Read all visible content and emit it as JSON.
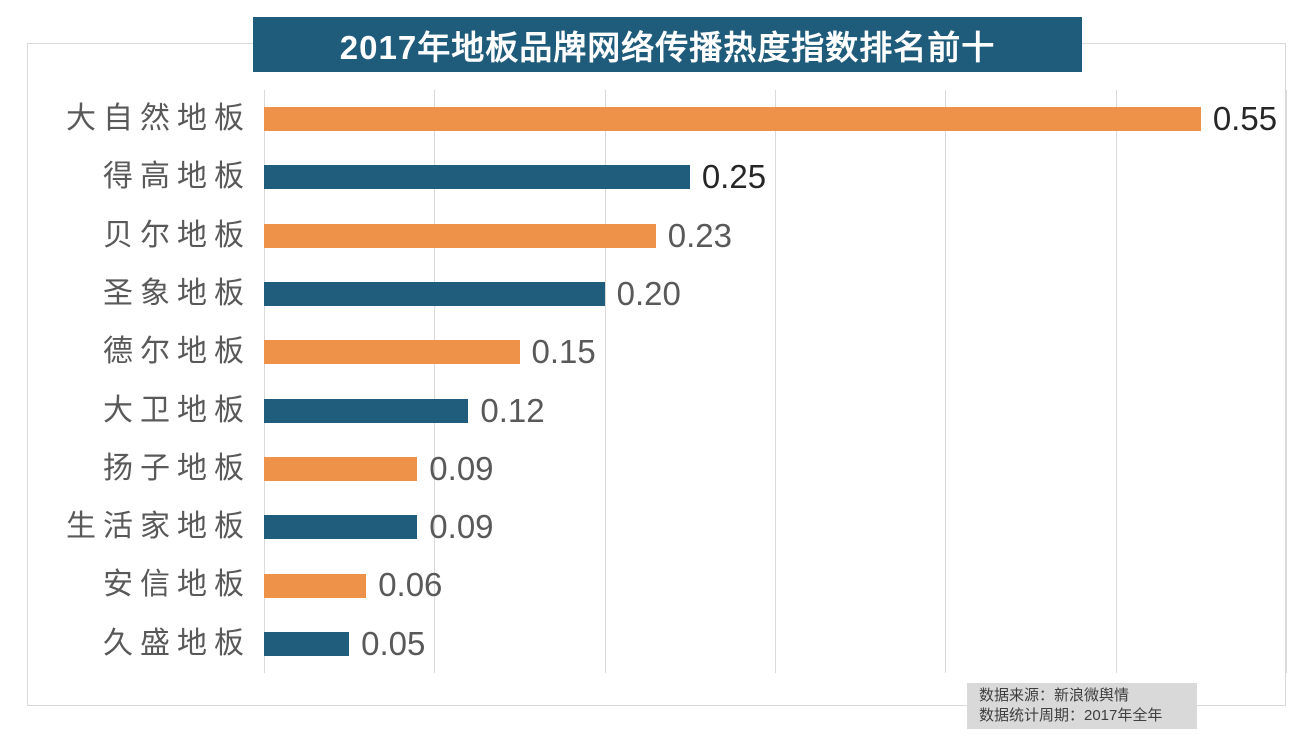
{
  "title": "2017年地板品牌网络传播热度指数排名前十",
  "source_box": {
    "line1": "数据来源：新浪微舆情",
    "line2": "数据统计周期：2017年全年"
  },
  "colors": {
    "title_bg": "#1f5b7a",
    "orange_bar": "#ef9249",
    "blue_bar": "#205c7b",
    "gridline": "#d9d9d9",
    "frame_border": "#d9d9d9",
    "category_label": "#595959",
    "value_label_dark": "#262626",
    "value_label_gray": "#595959",
    "source_bg": "#d9d9d9",
    "source_text": "#3f3f3f"
  },
  "chart_data": {
    "type": "bar",
    "orientation": "horizontal",
    "title": "2017年地板品牌网络传播热度指数排名前十",
    "categories": [
      "大自然地板",
      "得高地板",
      "贝尔地板",
      "圣象地板",
      "德尔地板",
      "大卫地板",
      "扬子地板",
      "生活家地板",
      "安信地板",
      "久盛地板"
    ],
    "values": [
      0.55,
      0.25,
      0.23,
      0.2,
      0.15,
      0.12,
      0.09,
      0.09,
      0.06,
      0.05
    ],
    "value_labels": [
      "0.55",
      "0.25",
      "0.23",
      "0.20",
      "0.15",
      "0.12",
      "0.09",
      "0.09",
      "0.06",
      "0.05"
    ],
    "bar_palette": [
      "#ef9249",
      "#205c7b"
    ],
    "value_label_colors": [
      "#262626",
      "#262626",
      "#595959",
      "#595959",
      "#595959",
      "#595959",
      "#595959",
      "#595959",
      "#595959",
      "#595959"
    ],
    "xlim": [
      0,
      0.6
    ],
    "grid_step": 0.1,
    "grid": true,
    "legend": "none",
    "xlabel": "",
    "ylabel": ""
  }
}
